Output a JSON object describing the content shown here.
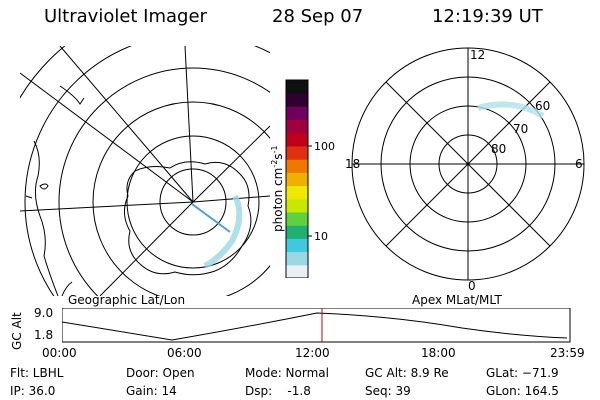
{
  "header": {
    "instrument": "Ultraviolet Imager",
    "date": "28 Sep 07",
    "time": "12:19:39 UT"
  },
  "geo_panel": {
    "caption": "Geographic Lat/Lon"
  },
  "mag_panel": {
    "caption": "Apex MLat/MLT",
    "mlt_labels": [
      "12",
      "6",
      "0",
      "18"
    ],
    "lat_labels": [
      "80",
      "70",
      "60"
    ]
  },
  "colorbar": {
    "unit_label": "photon cm^-2 s^-1",
    "unit_main": "photon cm",
    "unit_exp1": "-2",
    "unit_mid": "s",
    "unit_exp2": "-1",
    "tick_labels": [
      "100",
      "10"
    ],
    "colors": [
      "#e8f0f4",
      "#9ad8e4",
      "#40c8e0",
      "#20b070",
      "#60d040",
      "#c8e800",
      "#f0e800",
      "#f0b000",
      "#f07800",
      "#e03010",
      "#c00018",
      "#a00040",
      "#700060",
      "#300030",
      "#101010"
    ]
  },
  "altitude_plot": {
    "axis_label": "GC Alt",
    "y_ticks": [
      "9.0",
      "1.8"
    ],
    "x_ticks": [
      "00:00",
      "06:00",
      "12:00",
      "18:00",
      "23:59"
    ],
    "current_time_marker": "12:19",
    "marker_color": "#d00000"
  },
  "status": {
    "flt": "Flt: LBHL",
    "ip": "IP: 36.0",
    "door": "Door: Open",
    "gain": "Gain: 14",
    "mode": "Mode: Normal",
    "dsp": "Dsp:    -1.8",
    "gc_alt": "GC Alt: 8.9 Re",
    "seq": "Seq: 39",
    "glat": "GLat: −71.9",
    "glon": "GLon: 164.5"
  }
}
